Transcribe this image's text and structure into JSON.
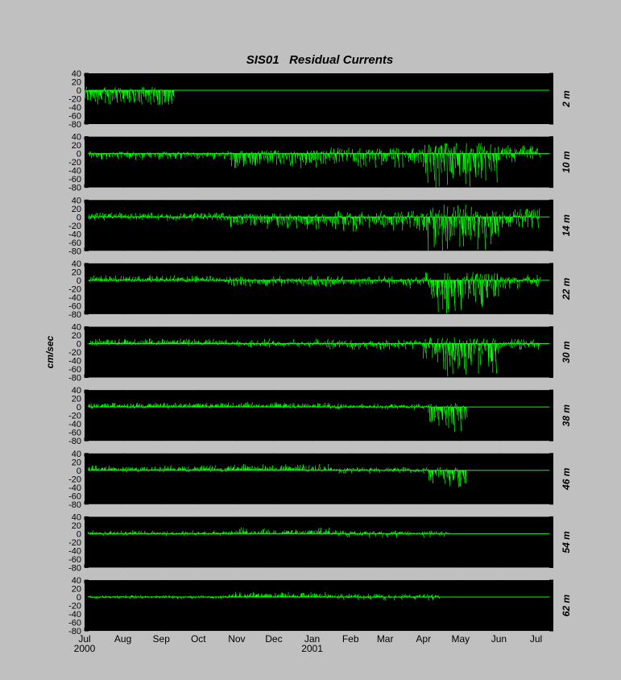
{
  "chart_data": {
    "type": "line",
    "title": "SIS01   Residual Currents",
    "ylabel": "cm/sec",
    "ylim": [
      -80,
      40
    ],
    "yticks": [
      40,
      20,
      0,
      -20,
      -40,
      -60,
      -80
    ],
    "xlim_days_label": "Jul 2000 – Jul 2001",
    "xticks": [
      {
        "label": "Jul",
        "year": "2000"
      },
      {
        "label": "Aug",
        "year": ""
      },
      {
        "label": "Sep",
        "year": ""
      },
      {
        "label": "Oct",
        "year": ""
      },
      {
        "label": "Nov",
        "year": ""
      },
      {
        "label": "Dec",
        "year": ""
      },
      {
        "label": "Jan",
        "year": "2001"
      },
      {
        "label": "Feb",
        "year": ""
      },
      {
        "label": "Mar",
        "year": ""
      },
      {
        "label": "Apr",
        "year": ""
      },
      {
        "label": "May",
        "year": ""
      },
      {
        "label": "Jun",
        "year": ""
      },
      {
        "label": "Jul",
        "year": ""
      }
    ],
    "line_color": "#00ff00",
    "panels": [
      {
        "depth": "2 m",
        "data_end": "2000-09-12",
        "segments": [
          {
            "from": "2000-07-01",
            "to": "2000-09-12",
            "typical_min": -30,
            "typical_max": 5,
            "extreme_min": -35,
            "extreme_max": 8
          }
        ]
      },
      {
        "depth": "10 m",
        "data_end": "2001-07-04",
        "segments": [
          {
            "from": "2000-07-04",
            "to": "2000-10-25",
            "typical_min": -10,
            "typical_max": 3,
            "extreme_min": -15,
            "extreme_max": 5
          },
          {
            "from": "2000-10-25",
            "to": "2001-01-15",
            "typical_min": -25,
            "typical_max": 5,
            "extreme_min": -35,
            "extreme_max": 8
          },
          {
            "from": "2001-01-15",
            "to": "2001-04-01",
            "typical_min": -20,
            "typical_max": 10,
            "extreme_min": -35,
            "extreme_max": 15
          },
          {
            "from": "2001-04-01",
            "to": "2001-06-01",
            "typical_min": -50,
            "typical_max": 20,
            "extreme_min": -80,
            "extreme_max": 25
          },
          {
            "from": "2001-06-01",
            "to": "2001-07-04",
            "typical_min": -15,
            "typical_max": 15,
            "extreme_min": -30,
            "extreme_max": 20
          }
        ]
      },
      {
        "depth": "14 m",
        "data_end": "2001-07-04",
        "segments": [
          {
            "from": "2000-07-04",
            "to": "2000-10-25",
            "typical_min": -5,
            "typical_max": 8,
            "extreme_min": -10,
            "extreme_max": 10
          },
          {
            "from": "2000-10-25",
            "to": "2001-01-15",
            "typical_min": -20,
            "typical_max": 5,
            "extreme_min": -30,
            "extreme_max": 8
          },
          {
            "from": "2001-01-15",
            "to": "2001-04-01",
            "typical_min": -20,
            "typical_max": 8,
            "extreme_min": -35,
            "extreme_max": 15
          },
          {
            "from": "2001-04-01",
            "to": "2001-06-01",
            "typical_min": -50,
            "typical_max": 20,
            "extreme_min": -80,
            "extreme_max": 30
          },
          {
            "from": "2001-06-01",
            "to": "2001-07-04",
            "typical_min": -15,
            "typical_max": 15,
            "extreme_min": -30,
            "extreme_max": 20
          }
        ]
      },
      {
        "depth": "22 m",
        "data_end": "2001-07-04",
        "segments": [
          {
            "from": "2000-07-04",
            "to": "2000-10-25",
            "typical_min": -3,
            "typical_max": 8,
            "extreme_min": -5,
            "extreme_max": 12
          },
          {
            "from": "2000-10-25",
            "to": "2001-01-15",
            "typical_min": -10,
            "typical_max": 5,
            "extreme_min": -15,
            "extreme_max": 10
          },
          {
            "from": "2001-01-15",
            "to": "2001-04-01",
            "typical_min": -10,
            "typical_max": 5,
            "extreme_min": -20,
            "extreme_max": 10
          },
          {
            "from": "2001-04-01",
            "to": "2001-06-01",
            "typical_min": -45,
            "typical_max": 15,
            "extreme_min": -80,
            "extreme_max": 20
          },
          {
            "from": "2001-06-01",
            "to": "2001-07-04",
            "typical_min": -10,
            "typical_max": 10,
            "extreme_min": -20,
            "extreme_max": 15
          }
        ]
      },
      {
        "depth": "30 m",
        "data_end": "2001-07-04",
        "segments": [
          {
            "from": "2000-07-04",
            "to": "2000-10-25",
            "typical_min": -2,
            "typical_max": 8,
            "extreme_min": -5,
            "extreme_max": 12
          },
          {
            "from": "2000-10-25",
            "to": "2001-01-15",
            "typical_min": -5,
            "typical_max": 5,
            "extreme_min": -10,
            "extreme_max": 12
          },
          {
            "from": "2001-01-15",
            "to": "2001-04-01",
            "typical_min": -8,
            "typical_max": 5,
            "extreme_min": -15,
            "extreme_max": 10
          },
          {
            "from": "2001-04-01",
            "to": "2001-06-01",
            "typical_min": -45,
            "typical_max": 10,
            "extreme_min": -80,
            "extreme_max": 15
          },
          {
            "from": "2001-06-01",
            "to": "2001-07-04",
            "typical_min": -8,
            "typical_max": 8,
            "extreme_min": -15,
            "extreme_max": 12
          }
        ]
      },
      {
        "depth": "38 m",
        "data_end": "2001-05-06",
        "segments": [
          {
            "from": "2000-07-04",
            "to": "2000-10-25",
            "typical_min": 0,
            "typical_max": 8,
            "extreme_min": -5,
            "extreme_max": 10
          },
          {
            "from": "2000-10-25",
            "to": "2001-01-15",
            "typical_min": 0,
            "typical_max": 8,
            "extreme_min": -3,
            "extreme_max": 12
          },
          {
            "from": "2001-01-15",
            "to": "2001-04-05",
            "typical_min": -3,
            "typical_max": 5,
            "extreme_min": -8,
            "extreme_max": 8
          },
          {
            "from": "2001-04-05",
            "to": "2001-05-06",
            "typical_min": -35,
            "typical_max": 5,
            "extreme_min": -60,
            "extreme_max": 10
          }
        ]
      },
      {
        "depth": "46 m",
        "data_end": "2001-05-06",
        "segments": [
          {
            "from": "2000-07-04",
            "to": "2000-10-25",
            "typical_min": 0,
            "typical_max": 8,
            "extreme_min": -5,
            "extreme_max": 12
          },
          {
            "from": "2000-10-25",
            "to": "2001-01-15",
            "typical_min": 0,
            "typical_max": 10,
            "extreme_min": -3,
            "extreme_max": 15
          },
          {
            "from": "2001-01-15",
            "to": "2001-04-05",
            "typical_min": -3,
            "typical_max": 5,
            "extreme_min": -8,
            "extreme_max": 8
          },
          {
            "from": "2001-04-05",
            "to": "2001-05-06",
            "typical_min": -25,
            "typical_max": 5,
            "extreme_min": -40,
            "extreme_max": 8
          }
        ]
      },
      {
        "depth": "54 m",
        "data_end": "2001-04-22",
        "segments": [
          {
            "from": "2000-07-04",
            "to": "2000-10-25",
            "typical_min": -2,
            "typical_max": 5,
            "extreme_min": -5,
            "extreme_max": 8
          },
          {
            "from": "2000-10-25",
            "to": "2001-01-15",
            "typical_min": 0,
            "typical_max": 8,
            "extreme_min": -3,
            "extreme_max": 15
          },
          {
            "from": "2001-01-15",
            "to": "2001-04-22",
            "typical_min": -3,
            "typical_max": 5,
            "extreme_min": -10,
            "extreme_max": 8
          }
        ]
      },
      {
        "depth": "62 m",
        "data_end": "2001-04-14",
        "segments": [
          {
            "from": "2000-07-04",
            "to": "2000-10-25",
            "typical_min": -3,
            "typical_max": 3,
            "extreme_min": -5,
            "extreme_max": 5
          },
          {
            "from": "2000-10-25",
            "to": "2001-01-15",
            "typical_min": 0,
            "typical_max": 8,
            "extreme_min": -3,
            "extreme_max": 12
          },
          {
            "from": "2001-01-15",
            "to": "2001-04-14",
            "typical_min": -3,
            "typical_max": 5,
            "extreme_min": -8,
            "extreme_max": 8
          }
        ]
      }
    ]
  }
}
